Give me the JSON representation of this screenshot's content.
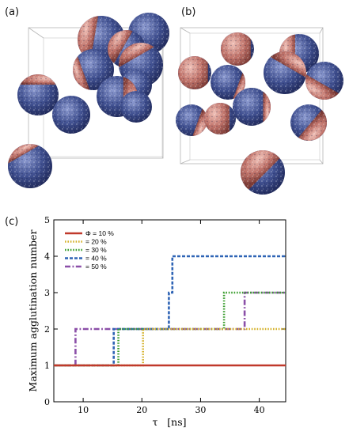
{
  "panels": {
    "a_label": "(a)",
    "b_label": "(b)",
    "c_label": "(c)"
  },
  "sphere_colors": {
    "blue": "#3f4f8f",
    "red": "#c0736a",
    "light": "#dfe3ef"
  },
  "chart_data": {
    "type": "line",
    "title": "",
    "xlabel": "τ   [ns]",
    "ylabel": "Maximum agglutination number",
    "xlim": [
      5,
      44.5
    ],
    "ylim": [
      0,
      5
    ],
    "xticks": [
      10,
      20,
      30,
      40
    ],
    "yticks": [
      0,
      1,
      2,
      3,
      4,
      5
    ],
    "legend_position": "top-left",
    "series": [
      {
        "name": "Φ = 10 %",
        "color": "#c0392b",
        "dash": "solid",
        "x": [
          5,
          44.5
        ],
        "y": [
          1,
          1
        ]
      },
      {
        "name": "= 20 %",
        "color": "#d4b12a",
        "dash": "dot",
        "x": [
          5,
          20.2,
          20.2,
          44.5
        ],
        "y": [
          1,
          1,
          2,
          2
        ]
      },
      {
        "name": "= 30 %",
        "color": "#3a9d2e",
        "dash": "dot",
        "x": [
          5,
          16,
          16,
          34,
          34,
          44.5
        ],
        "y": [
          1,
          1,
          2,
          2,
          3,
          3
        ]
      },
      {
        "name": "= 40 %",
        "color": "#2f64b5",
        "dash": "dash",
        "x": [
          5,
          15.2,
          15.2,
          24.6,
          24.6,
          25.2,
          25.2,
          44.5
        ],
        "y": [
          1,
          1,
          2,
          2,
          3,
          3,
          4,
          4
        ]
      },
      {
        "name": "= 50 %",
        "color": "#8b4fa8",
        "dash": "dashdot",
        "x": [
          5,
          8.7,
          8.7,
          37.5,
          37.5,
          44.5
        ],
        "y": [
          1,
          1,
          2,
          2,
          3,
          3
        ]
      }
    ]
  }
}
